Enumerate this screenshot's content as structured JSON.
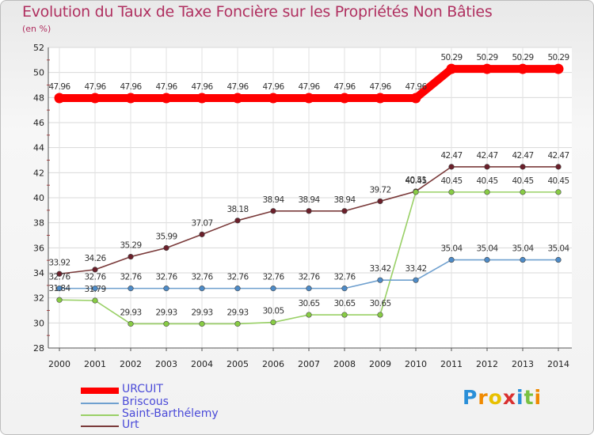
{
  "chart_data": {
    "type": "line",
    "title": "Evolution du Taux de Taxe Foncière sur les Propriétés Non Bâties",
    "ylabel": "(en %)",
    "xlabel": "",
    "ylim": [
      28,
      52
    ],
    "yticks": [
      "28",
      "30",
      "32",
      "34",
      "36",
      "38",
      "40",
      "42",
      "44",
      "46",
      "48",
      "50",
      "52"
    ],
    "categories": [
      "2000",
      "2001",
      "2002",
      "2003",
      "2004",
      "2005",
      "2006",
      "2007",
      "2008",
      "2009",
      "2010",
      "2011",
      "2012",
      "2013",
      "2014"
    ],
    "series": [
      {
        "name": "URCUIT",
        "color": "#ff0000",
        "marker": "#ff0000",
        "values": [
          47.96,
          47.96,
          47.96,
          47.96,
          47.96,
          47.96,
          47.96,
          47.96,
          47.96,
          47.96,
          47.96,
          50.29,
          50.29,
          50.29,
          50.29
        ],
        "labels": [
          "47.96",
          "47.96",
          "47.96",
          "47.96",
          "47.96",
          "47.96",
          "47.96",
          "47.96",
          "47.96",
          "47.96",
          "47.96",
          "50.29",
          "50.29",
          "50.29",
          "50.29"
        ]
      },
      {
        "name": "Briscous",
        "color": "#6fa0cf",
        "marker": "#4d8bc8",
        "values": [
          32.76,
          32.76,
          32.76,
          32.76,
          32.76,
          32.76,
          32.76,
          32.76,
          32.76,
          33.42,
          33.42,
          35.04,
          35.04,
          35.04,
          35.04
        ],
        "labels": [
          "32.76",
          "32.76",
          "32.76",
          "32.76",
          "32.76",
          "32.76",
          "32.76",
          "32.76",
          "32.76",
          "33.42",
          "33.42",
          "35.04",
          "35.04",
          "35.04",
          "35.04"
        ]
      },
      {
        "name": "Saint-Barthélemy",
        "color": "#99d066",
        "marker": "#88cc44",
        "values": [
          31.84,
          31.79,
          29.93,
          29.93,
          29.93,
          29.93,
          30.05,
          30.65,
          30.65,
          30.65,
          40.45,
          40.45,
          40.45,
          40.45,
          40.45
        ],
        "labels": [
          "31.84",
          "31.79",
          "29.93",
          "29.93",
          "29.93",
          "29.93",
          "30.05",
          "30.65",
          "30.65",
          "30.65",
          "40.45",
          "40.45",
          "40.45",
          "40.45",
          "40.45"
        ]
      },
      {
        "name": "Urt",
        "color": "#7a3a3a",
        "marker": "#6b1f2a",
        "values": [
          33.92,
          34.26,
          35.29,
          35.99,
          37.07,
          38.18,
          38.94,
          38.94,
          38.94,
          39.72,
          40.51,
          42.47,
          42.47,
          42.47,
          42.47
        ],
        "labels": [
          "33.92",
          "34.26",
          "35.29",
          "35.99",
          "37.07",
          "38.18",
          "38.94",
          "38.94",
          "38.94",
          "39.72",
          "40.51",
          "42.47",
          "42.47",
          "42.47",
          "42.47"
        ]
      }
    ]
  },
  "brand": {
    "p": "P",
    "r": "r",
    "o": "o",
    "x": "x",
    "i1": "i",
    "t": "t",
    "i2": "i"
  }
}
